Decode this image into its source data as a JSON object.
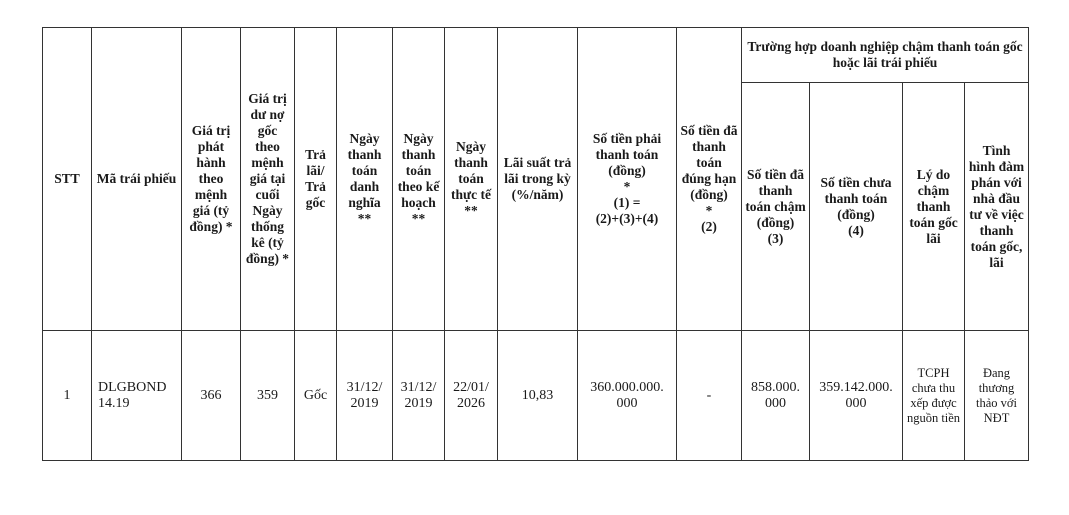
{
  "table": {
    "headers": {
      "stt": "STT",
      "ma_trai_phieu": "Mã trái phiếu",
      "gia_tri_phat_hanh": "Giá trị phát hành theo mệnh giá (tỷ đồng) *",
      "gia_tri_du_no": "Giá trị dư nợ gốc theo mệnh giá tại cuối Ngày thống kê (tỷ đồng) *",
      "tra_lai_tra_goc": "Trả lãi/ Trả gốc",
      "ngay_danh_nghia": "Ngày thanh toán danh nghĩa **",
      "ngay_ke_hoach": "Ngày thanh toán theo kế hoạch **",
      "ngay_thuc_te": "Ngày thanh toán thực tế **",
      "lai_suat": "Lãi suất trả lãi trong kỳ (%/năm)",
      "so_tien_phai_tt": "Số tiền phải thanh toán (đồng)\n*\n(1) =\n(2)+(3)+(4)",
      "so_tien_dung_han": "Số tiền đã thanh toán đúng hạn (đồng)\n*\n(2)",
      "group": "Trường hợp doanh nghiệp chậm thanh toán gốc hoặc lãi trái phiếu",
      "da_tt_cham": "Số tiền đã thanh toán chậm (đồng)\n(3)",
      "chua_tt": "Số tiền chưa thanh toán (đồng)\n(4)",
      "ly_do": "Lý do chậm thanh toán gốc lãi",
      "tinh_hinh": "Tình hình đàm phán với nhà đầu tư về việc thanh toán gốc, lãi"
    },
    "rows": [
      {
        "stt": "1",
        "ma_trai_phieu": "DLGBOND 14.19",
        "gia_tri_phat_hanh": "366",
        "gia_tri_du_no": "359",
        "tra_lai_tra_goc": "Gốc",
        "ngay_danh_nghia": "31/12/ 2019",
        "ngay_ke_hoach": "31/12/ 2019",
        "ngay_thuc_te": "22/01/ 2026",
        "lai_suat": "10,83",
        "so_tien_phai_tt": "360.000.000. 000",
        "so_tien_dung_han": "-",
        "da_tt_cham": "858.000. 000",
        "chua_tt": "359.142.000. 000",
        "ly_do": "TCPH chưa thu xếp được nguồn tiền",
        "tinh_hinh": "Đang thương thảo với NĐT"
      }
    ]
  }
}
